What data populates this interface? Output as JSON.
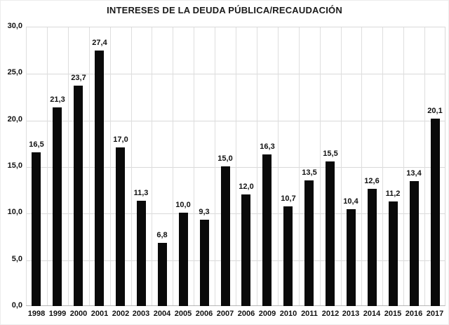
{
  "chart_data": {
    "type": "bar",
    "title": "INTERESES DE LA DEUDA PÚBLICA/RECAUDACIÓN",
    "categories": [
      "1998",
      "1999",
      "2000",
      "2001",
      "2002",
      "2003",
      "2004",
      "2005",
      "2006",
      "2007",
      "2006",
      "2009",
      "2010",
      "2011",
      "2012",
      "2013",
      "2014",
      "2015",
      "2016",
      "2017"
    ],
    "values": [
      16.5,
      21.3,
      23.7,
      27.4,
      17.0,
      11.3,
      6.8,
      10.0,
      9.3,
      15.0,
      12.0,
      16.3,
      10.7,
      13.5,
      15.5,
      10.4,
      12.6,
      11.2,
      13.4,
      20.1
    ],
    "value_labels": [
      "16,5",
      "21,3",
      "23,7",
      "27,4",
      "17,0",
      "11,3",
      "6,8",
      "10,0",
      "9,3",
      "15,0",
      "12,0",
      "16,3",
      "10,7",
      "13,5",
      "15,5",
      "10,4",
      "12,6",
      "11,2",
      "13,4",
      "20,1"
    ],
    "xlabel": "",
    "ylabel": "",
    "ylim": [
      0,
      30
    ],
    "yticks": [
      0,
      5,
      10,
      15,
      20,
      25,
      30
    ],
    "ytick_labels": [
      "0,0",
      "5,0",
      "10,0",
      "15,0",
      "20,0",
      "25,0",
      "30,0"
    ],
    "grid": "horizontal-and-vertical",
    "legend_position": "none",
    "bar_color": "#0a0a0a",
    "gridline_color": "#d9d9d9",
    "axis_line_color": "#b7b7b7"
  }
}
